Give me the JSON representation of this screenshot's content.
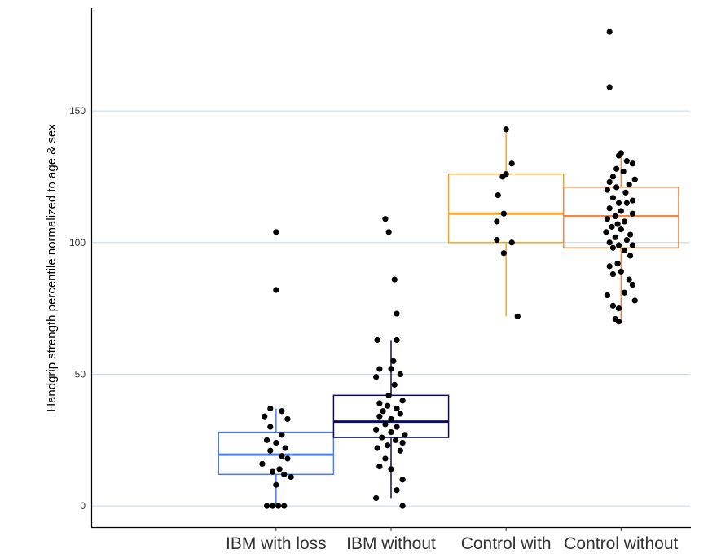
{
  "chart_data": {
    "type": "boxplot",
    "ylabel": "Handgrip strength percentile normalized to age & sex",
    "xlabel": "",
    "ylim": [
      -8,
      189
    ],
    "yticks": [
      0,
      50,
      100,
      150
    ],
    "grid": "horizontal-major",
    "legend": "none",
    "categories": [
      "IBM with loss",
      "IBM without",
      "Control with",
      "Control without"
    ],
    "series": [
      {
        "category": "IBM with loss",
        "color": "#4a7de8",
        "box": {
          "q1": 12,
          "median": 19.5,
          "q3": 28,
          "whisker_low": 0,
          "whisker_high": 37
        },
        "points": [
          {
            "x": 2.0,
            "y": 104
          },
          {
            "x": 2.0,
            "y": 82
          },
          {
            "x": 1.95,
            "y": 37
          },
          {
            "x": 2.05,
            "y": 36
          },
          {
            "x": 1.9,
            "y": 34
          },
          {
            "x": 2.1,
            "y": 33
          },
          {
            "x": 1.95,
            "y": 30
          },
          {
            "x": 2.05,
            "y": 27
          },
          {
            "x": 1.92,
            "y": 25
          },
          {
            "x": 2.0,
            "y": 24
          },
          {
            "x": 2.08,
            "y": 22
          },
          {
            "x": 1.95,
            "y": 21
          },
          {
            "x": 2.05,
            "y": 19
          },
          {
            "x": 2.1,
            "y": 18
          },
          {
            "x": 1.88,
            "y": 16
          },
          {
            "x": 2.03,
            "y": 14
          },
          {
            "x": 1.97,
            "y": 13
          },
          {
            "x": 2.07,
            "y": 12
          },
          {
            "x": 2.13,
            "y": 11
          },
          {
            "x": 2.0,
            "y": 8
          },
          {
            "x": 1.92,
            "y": 0
          },
          {
            "x": 1.97,
            "y": 0
          },
          {
            "x": 2.02,
            "y": 0
          },
          {
            "x": 2.07,
            "y": 0
          }
        ]
      },
      {
        "category": "IBM without",
        "color": "#0d0d66",
        "box": {
          "q1": 26,
          "median": 32,
          "q3": 42,
          "whisker_low": 3,
          "whisker_high": 63
        },
        "points": [
          {
            "x": 2.95,
            "y": 109
          },
          {
            "x": 2.98,
            "y": 104
          },
          {
            "x": 3.03,
            "y": 86
          },
          {
            "x": 3.05,
            "y": 73
          },
          {
            "x": 2.88,
            "y": 63
          },
          {
            "x": 3.05,
            "y": 63
          },
          {
            "x": 3.02,
            "y": 55
          },
          {
            "x": 2.9,
            "y": 52
          },
          {
            "x": 3.0,
            "y": 52
          },
          {
            "x": 3.08,
            "y": 50
          },
          {
            "x": 2.87,
            "y": 49
          },
          {
            "x": 3.03,
            "y": 46
          },
          {
            "x": 2.98,
            "y": 42
          },
          {
            "x": 3.1,
            "y": 40
          },
          {
            "x": 2.9,
            "y": 39
          },
          {
            "x": 2.97,
            "y": 38
          },
          {
            "x": 3.05,
            "y": 37
          },
          {
            "x": 2.93,
            "y": 36
          },
          {
            "x": 3.08,
            "y": 35
          },
          {
            "x": 2.9,
            "y": 34
          },
          {
            "x": 3.0,
            "y": 33
          },
          {
            "x": 2.95,
            "y": 31
          },
          {
            "x": 3.05,
            "y": 30
          },
          {
            "x": 2.87,
            "y": 29
          },
          {
            "x": 3.0,
            "y": 28
          },
          {
            "x": 3.12,
            "y": 27
          },
          {
            "x": 2.92,
            "y": 26
          },
          {
            "x": 3.04,
            "y": 25
          },
          {
            "x": 3.1,
            "y": 24
          },
          {
            "x": 2.97,
            "y": 23
          },
          {
            "x": 2.88,
            "y": 22
          },
          {
            "x": 3.08,
            "y": 21
          },
          {
            "x": 2.95,
            "y": 18
          },
          {
            "x": 2.9,
            "y": 15
          },
          {
            "x": 3.0,
            "y": 14
          },
          {
            "x": 3.1,
            "y": 10
          },
          {
            "x": 3.05,
            "y": 6
          },
          {
            "x": 2.87,
            "y": 3
          },
          {
            "x": 3.1,
            "y": 0
          }
        ]
      },
      {
        "category": "Control with",
        "color": "#f5a623",
        "box": {
          "q1": 100,
          "median": 111,
          "q3": 126,
          "whisker_low": 72,
          "whisker_high": 143
        },
        "points": [
          {
            "x": 4.0,
            "y": 143
          },
          {
            "x": 4.05,
            "y": 130
          },
          {
            "x": 4.0,
            "y": 126
          },
          {
            "x": 3.97,
            "y": 125
          },
          {
            "x": 3.93,
            "y": 118
          },
          {
            "x": 3.98,
            "y": 111
          },
          {
            "x": 3.92,
            "y": 108
          },
          {
            "x": 3.92,
            "y": 101
          },
          {
            "x": 4.05,
            "y": 100
          },
          {
            "x": 3.98,
            "y": 96
          },
          {
            "x": 4.1,
            "y": 72
          }
        ]
      },
      {
        "category": "Control without",
        "color": "#f08a4b",
        "box": {
          "q1": 98,
          "median": 110,
          "q3": 121,
          "whisker_low": 70,
          "whisker_high": 134
        },
        "points": [
          {
            "x": 4.9,
            "y": 180
          },
          {
            "x": 4.9,
            "y": 159
          },
          {
            "x": 5.0,
            "y": 134
          },
          {
            "x": 4.98,
            "y": 133
          },
          {
            "x": 5.05,
            "y": 131
          },
          {
            "x": 5.1,
            "y": 130
          },
          {
            "x": 4.96,
            "y": 128
          },
          {
            "x": 5.02,
            "y": 127
          },
          {
            "x": 4.93,
            "y": 125
          },
          {
            "x": 5.12,
            "y": 124
          },
          {
            "x": 4.9,
            "y": 123
          },
          {
            "x": 5.07,
            "y": 122
          },
          {
            "x": 4.96,
            "y": 121
          },
          {
            "x": 4.88,
            "y": 120
          },
          {
            "x": 5.04,
            "y": 119
          },
          {
            "x": 4.93,
            "y": 117
          },
          {
            "x": 5.1,
            "y": 116
          },
          {
            "x": 4.98,
            "y": 115
          },
          {
            "x": 5.05,
            "y": 115
          },
          {
            "x": 4.9,
            "y": 113
          },
          {
            "x": 5.0,
            "y": 112
          },
          {
            "x": 5.1,
            "y": 111
          },
          {
            "x": 4.95,
            "y": 110
          },
          {
            "x": 4.88,
            "y": 109
          },
          {
            "x": 5.03,
            "y": 108
          },
          {
            "x": 4.97,
            "y": 107
          },
          {
            "x": 4.92,
            "y": 106
          },
          {
            "x": 5.0,
            "y": 105
          },
          {
            "x": 4.87,
            "y": 104
          },
          {
            "x": 5.08,
            "y": 103
          },
          {
            "x": 4.95,
            "y": 102
          },
          {
            "x": 5.05,
            "y": 101
          },
          {
            "x": 4.9,
            "y": 100
          },
          {
            "x": 5.1,
            "y": 99
          },
          {
            "x": 4.98,
            "y": 99
          },
          {
            "x": 4.93,
            "y": 98
          },
          {
            "x": 5.03,
            "y": 97
          },
          {
            "x": 5.08,
            "y": 95
          },
          {
            "x": 4.97,
            "y": 92
          },
          {
            "x": 4.9,
            "y": 91
          },
          {
            "x": 5.0,
            "y": 89
          },
          {
            "x": 4.93,
            "y": 88
          },
          {
            "x": 5.07,
            "y": 86
          },
          {
            "x": 5.1,
            "y": 84
          },
          {
            "x": 5.03,
            "y": 81
          },
          {
            "x": 4.88,
            "y": 80
          },
          {
            "x": 5.12,
            "y": 78
          },
          {
            "x": 4.93,
            "y": 76
          },
          {
            "x": 4.98,
            "y": 75
          },
          {
            "x": 4.95,
            "y": 71
          },
          {
            "x": 4.98,
            "y": 70
          }
        ]
      }
    ]
  }
}
